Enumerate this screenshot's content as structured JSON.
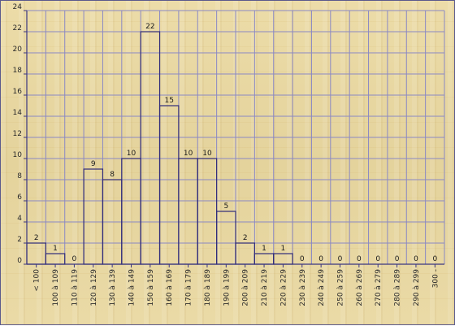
{
  "chart_data": {
    "type": "bar",
    "categories": [
      "< 100",
      "100 à 109",
      "110 à 119",
      "120 à 129",
      "130 à 139",
      "140 à 149",
      "150 à 159",
      "160 à 169",
      "170 à 179",
      "180 à 189",
      "190 à 199",
      "200 à 209",
      "210 à 219",
      "220 à 229",
      "230 à 239",
      "240 à 249",
      "250 à 259",
      "260 à 269",
      "270 à 279",
      "280 à 289",
      "290 à 299",
      "300 -"
    ],
    "values": [
      2,
      1,
      0,
      9,
      8,
      10,
      22,
      15,
      10,
      10,
      5,
      2,
      1,
      1,
      0,
      0,
      0,
      0,
      0,
      0,
      0,
      0
    ],
    "ylim": [
      0,
      24
    ],
    "yticks": [
      "0",
      "2",
      "4",
      "6",
      "8",
      "10",
      "12",
      "14",
      "16",
      "18",
      "20",
      "22",
      "24"
    ],
    "grid": true,
    "colors": {
      "bar_outline": "#2f2b7a",
      "grid": "#8a88c4",
      "axis": "#3a3680"
    }
  }
}
